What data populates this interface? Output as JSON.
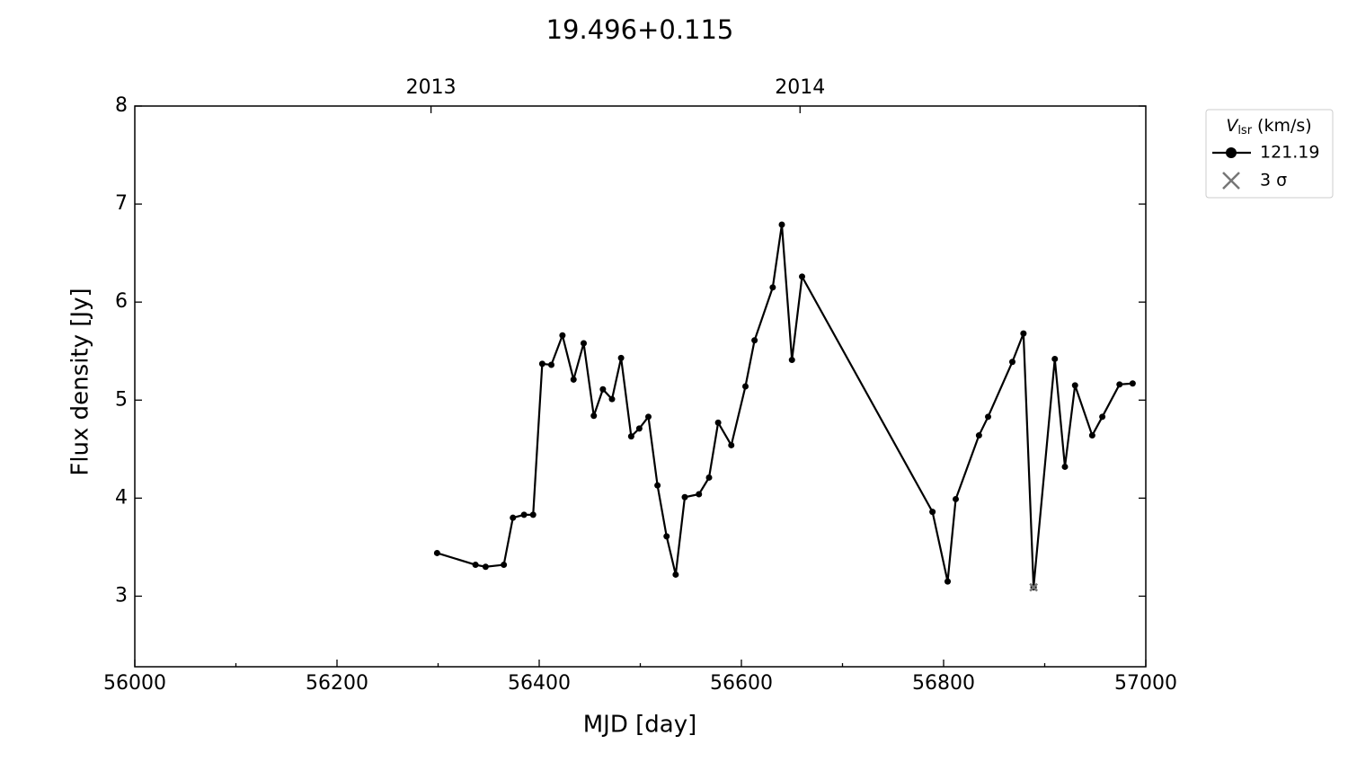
{
  "chart_data": {
    "type": "line",
    "title": "19.496+0.115",
    "xlabel": "MJD [day]",
    "ylabel": "Flux density [Jy]",
    "xlim": [
      56000,
      57000
    ],
    "xticks": [
      56000,
      56200,
      56400,
      56600,
      56800,
      57000
    ],
    "xminorticks": [
      56100,
      56300,
      56500,
      56700,
      56900
    ],
    "x2ticks": [
      {
        "value": 56293,
        "label": "2013"
      },
      {
        "value": 56658,
        "label": "2014"
      }
    ],
    "ylim": [
      2.28,
      8
    ],
    "yticks": [
      3,
      4,
      5,
      6,
      7,
      8
    ],
    "legend_position": "outside upper right",
    "legend_title": {
      "symbol": "V",
      "subscript": "lsr",
      "unit": "(km/s)"
    },
    "series": [
      {
        "name": "121.19",
        "color": "#000000",
        "marker": "o",
        "x": [
          56299,
          56337,
          56347,
          56365,
          56374,
          56385,
          56394,
          56403,
          56412,
          56423,
          56434,
          56444,
          56454,
          56463,
          56472,
          56481,
          56491,
          56499,
          56508,
          56517,
          56526,
          56535,
          56544,
          56558,
          56568,
          56577,
          56590,
          56604,
          56613,
          56631,
          56640,
          56650,
          56660,
          56789,
          56804,
          56812,
          56835,
          56844,
          56868,
          56879,
          56889,
          56910,
          56920,
          56930,
          56947,
          56957,
          56974,
          56987
        ],
        "values": [
          3.44,
          3.32,
          3.3,
          3.32,
          3.8,
          3.83,
          3.83,
          5.37,
          5.36,
          5.66,
          5.21,
          5.58,
          4.84,
          5.11,
          5.01,
          5.43,
          4.63,
          4.71,
          4.83,
          4.13,
          3.61,
          3.22,
          4.01,
          4.04,
          4.21,
          4.77,
          4.54,
          5.14,
          5.61,
          6.15,
          6.79,
          5.41,
          6.26,
          3.86,
          3.15,
          3.99,
          4.64,
          4.83,
          5.39,
          5.68,
          3.09,
          5.42,
          4.32,
          5.15,
          4.64,
          4.83,
          5.16,
          5.17
        ]
      },
      {
        "name": "3 σ",
        "color": "#777777",
        "marker": "x",
        "x": [
          56889
        ],
        "values": [
          3.09
        ]
      }
    ]
  }
}
